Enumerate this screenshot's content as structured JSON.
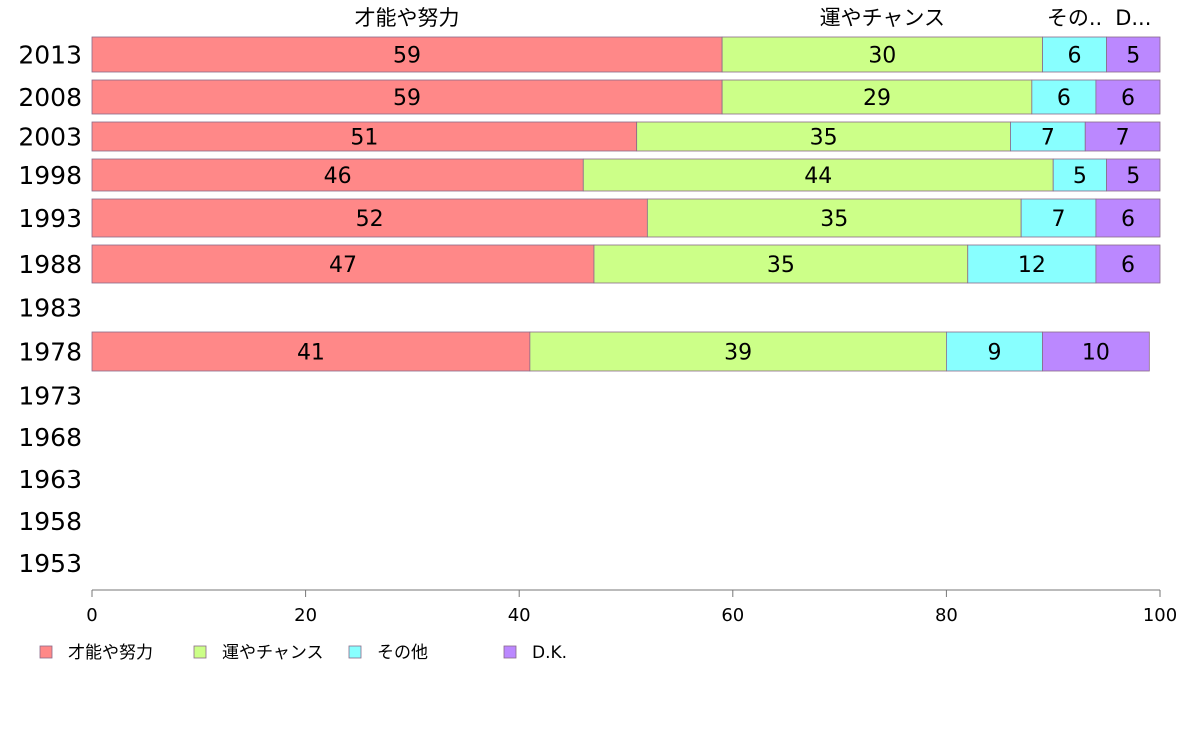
{
  "chart_data": {
    "type": "bar",
    "orientation": "horizontal",
    "stacked": true,
    "categories": [
      "2013",
      "2008",
      "2003",
      "1998",
      "1993",
      "1988",
      "1983",
      "1978",
      "1973",
      "1968",
      "1963",
      "1958",
      "1953"
    ],
    "series": [
      {
        "name": "才能や努力",
        "color": "#ff8888",
        "values": [
          59,
          59,
          51,
          46,
          52,
          47,
          null,
          41,
          null,
          null,
          null,
          null,
          null
        ]
      },
      {
        "name": "運やチャンス",
        "color": "#ccff88",
        "values": [
          30,
          29,
          35,
          44,
          35,
          35,
          null,
          39,
          null,
          null,
          null,
          null,
          null
        ]
      },
      {
        "name": "その他",
        "color": "#88ffff",
        "values": [
          6,
          6,
          7,
          5,
          7,
          12,
          null,
          9,
          null,
          null,
          null,
          null,
          null
        ]
      },
      {
        "name": "D.K.",
        "color": "#bb88ff",
        "values": [
          5,
          6,
          7,
          5,
          6,
          6,
          null,
          10,
          null,
          null,
          null,
          null,
          null
        ]
      }
    ],
    "top_labels": [
      "才能や努力",
      "運やチャンス",
      "その..",
      "D..."
    ],
    "xlim": [
      0,
      100
    ],
    "xticks": [
      "0",
      "20",
      "40",
      "60",
      "80",
      "100"
    ],
    "grid": false,
    "legend_position": "bottom-left"
  }
}
